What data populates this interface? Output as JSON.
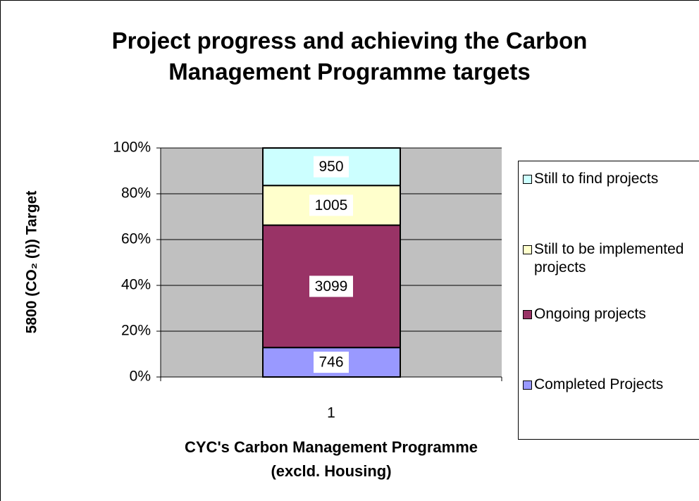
{
  "chart_data": {
    "type": "bar",
    "stacked": true,
    "title": "Project progress and achieving the Carbon Management Programme targets",
    "x_label": "CYC's Carbon Management Programme (excld. Housing)",
    "y_label": "5800 (CO₂ (t)) Target",
    "categories": [
      "1"
    ],
    "series": [
      {
        "name": "Completed Projects",
        "color": "#9999ff",
        "values": [
          746
        ]
      },
      {
        "name": "Ongoing projects",
        "color": "#993366",
        "values": [
          3099
        ]
      },
      {
        "name": "Still to be implemented projects",
        "color": "#ffffcc",
        "values": [
          1005
        ]
      },
      {
        "name": "Still to find projects",
        "color": "#ccffff",
        "values": [
          950
        ]
      }
    ],
    "ylim": [
      0,
      5800
    ],
    "yticks": [
      {
        "value": 0,
        "label": "0%"
      },
      {
        "value": 1160,
        "label": "20%"
      },
      {
        "value": 2320,
        "label": "40%"
      },
      {
        "value": 3480,
        "label": "60%"
      },
      {
        "value": 4640,
        "label": "80%"
      },
      {
        "value": 5800,
        "label": "100%"
      }
    ],
    "grid": true,
    "legend": "right"
  }
}
